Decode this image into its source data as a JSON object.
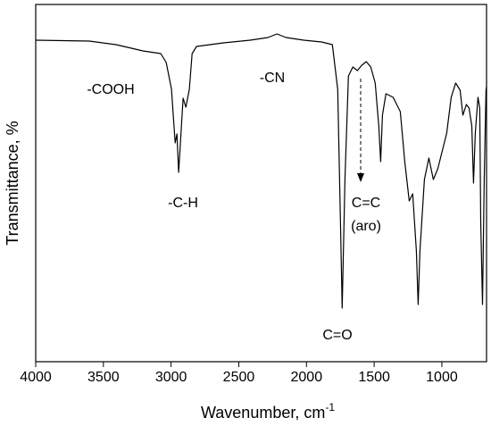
{
  "chart_data": {
    "type": "line",
    "x_label": "Wavenumber, cm",
    "x_label_superscript": "-1",
    "y_label": "Transmittance, %",
    "annotations": [
      "-COOH",
      "-C-H",
      "-CN",
      "C=O",
      "C=C",
      "(aro)"
    ],
    "x": [
      4000,
      3604,
      3406,
      3208,
      3076,
      3036,
      2997,
      2970,
      2957,
      2944,
      2931,
      2911,
      2891,
      2865,
      2845,
      2812,
      2614,
      2416,
      2284,
      2218,
      2152,
      2020,
      1888,
      1809,
      1769,
      1749,
      1736,
      1716,
      1690,
      1657,
      1624,
      1591,
      1558,
      1525,
      1492,
      1466,
      1452,
      1439,
      1413,
      1360,
      1307,
      1274,
      1241,
      1215,
      1188,
      1175,
      1162,
      1129,
      1096,
      1063,
      1030,
      997,
      964,
      931,
      898,
      865,
      845,
      819,
      799,
      779,
      766,
      753,
      733,
      720,
      713,
      700,
      687,
      674,
      670
    ],
    "series": [
      {
        "color": "#000000",
        "values": [
          90,
          89.75,
          88.75,
          87,
          86.25,
          83.75,
          76.25,
          61.25,
          63.75,
          53,
          61.25,
          73.75,
          71.25,
          76.25,
          86.25,
          88.25,
          89.25,
          90,
          90.75,
          91.75,
          90.75,
          90,
          89.5,
          88.75,
          76.25,
          38.75,
          15,
          51,
          80,
          82.5,
          81.5,
          83,
          84,
          82.5,
          78,
          66,
          56,
          69,
          75,
          74,
          70,
          56,
          45,
          47,
          31,
          16,
          31,
          51,
          57,
          51,
          54,
          59,
          64,
          74,
          78,
          76,
          69,
          72,
          71,
          66,
          50,
          64,
          74,
          71,
          39,
          16,
          51,
          76,
          77
        ]
      }
    ],
    "xlim": [
      4000,
      670
    ],
    "ylim": [
      0,
      100
    ],
    "xticks": [
      4000,
      3500,
      3000,
      2500,
      2000,
      1500,
      1000
    ]
  }
}
